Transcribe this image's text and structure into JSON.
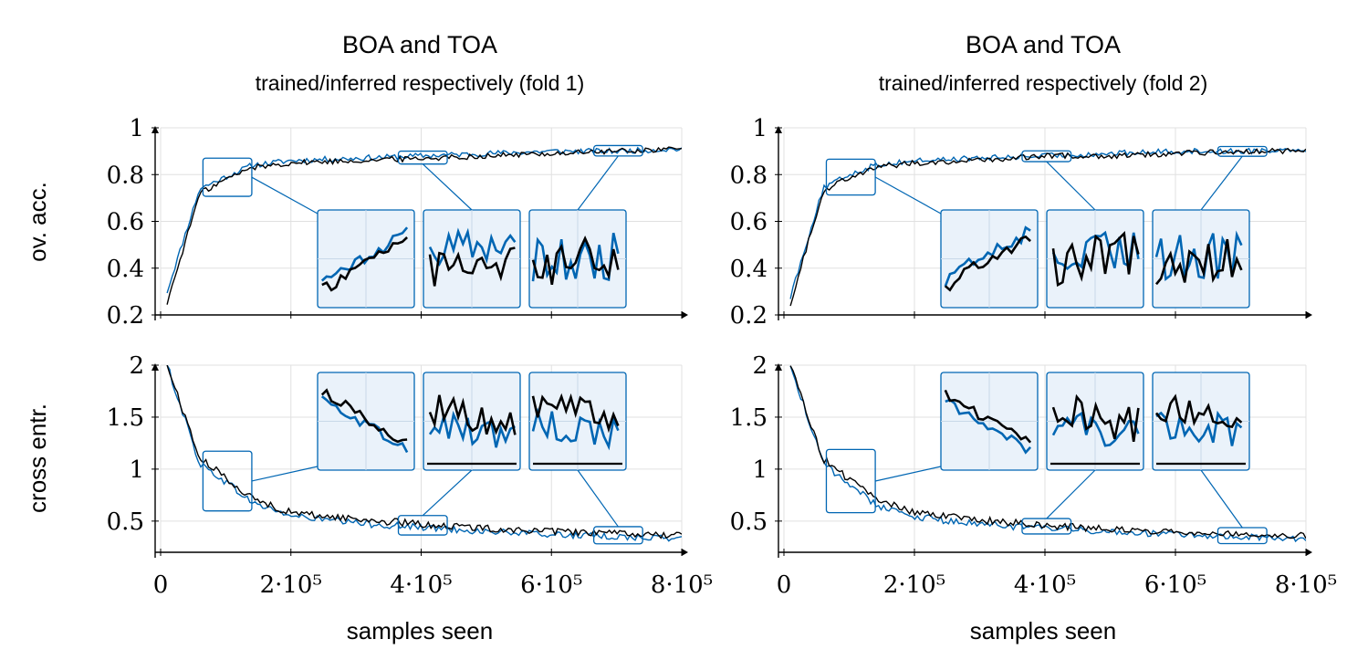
{
  "figure": {
    "columns": [
      {
        "title": "BOA and TOA",
        "subtitle": "trained/inferred respectively (fold 1)"
      },
      {
        "title": "BOA and TOA",
        "subtitle": "trained/inferred respectively (fold 2)"
      }
    ],
    "row_labels": [
      "ov. acc.",
      "cross entr."
    ],
    "xlabel": "samples seen",
    "x_tick_labels": [
      "0",
      "2·10⁵",
      "4·10⁵",
      "6·10⁵",
      "8·10⁵"
    ],
    "colors": {
      "blue": "#0066b3",
      "black": "#000000",
      "inset_fill": "#eaf2fa",
      "grid": "#e0e0e0"
    }
  },
  "chart_data": [
    {
      "type": "line",
      "panel": "fold 1 accuracy",
      "ylabel": "ov. acc.",
      "xlim": [
        0,
        800000
      ],
      "ylim": [
        0.2,
        1.0
      ],
      "y_tick_values": [
        0.2,
        0.4,
        0.6,
        0.8,
        1.0
      ],
      "y_tick_labels": [
        "0.2",
        "0.4",
        "0.6",
        "0.8",
        "1"
      ],
      "grid": true,
      "x": [
        10000,
        60000,
        100000,
        140000,
        200000,
        300000,
        400000,
        500000,
        600000,
        700000,
        800000
      ],
      "series": [
        {
          "color": "#0066b3",
          "values": [
            0.3,
            0.74,
            0.79,
            0.84,
            0.86,
            0.87,
            0.88,
            0.89,
            0.9,
            0.9,
            0.91
          ]
        },
        {
          "color": "#000000",
          "values": [
            0.25,
            0.72,
            0.78,
            0.83,
            0.85,
            0.86,
            0.87,
            0.88,
            0.89,
            0.9,
            0.91
          ]
        }
      ],
      "zoom_boxes_x": [
        [
          65000,
          140000
        ],
        [
          365000,
          440000
        ],
        [
          665000,
          740000
        ]
      ]
    },
    {
      "type": "line",
      "panel": "fold 1 cross entropy",
      "ylabel": "cross entr.",
      "xlim": [
        0,
        800000
      ],
      "ylim": [
        0.2,
        2.0
      ],
      "y_tick_values": [
        0.5,
        1.0,
        1.5,
        2.0
      ],
      "y_tick_labels": [
        "0.5",
        "1",
        "1.5",
        "2"
      ],
      "grid": true,
      "x": [
        10000,
        60000,
        100000,
        140000,
        200000,
        300000,
        400000,
        500000,
        600000,
        700000,
        800000
      ],
      "series": [
        {
          "color": "#0066b3",
          "values": [
            2.0,
            1.05,
            0.88,
            0.68,
            0.55,
            0.48,
            0.44,
            0.4,
            0.37,
            0.35,
            0.33
          ]
        },
        {
          "color": "#000000",
          "values": [
            2.0,
            1.1,
            0.92,
            0.72,
            0.58,
            0.52,
            0.47,
            0.43,
            0.4,
            0.38,
            0.36
          ]
        }
      ],
      "zoom_boxes_x": [
        [
          65000,
          140000
        ],
        [
          365000,
          440000
        ],
        [
          665000,
          740000
        ]
      ]
    },
    {
      "type": "line",
      "panel": "fold 2 accuracy",
      "ylabel": "",
      "xlim": [
        0,
        800000
      ],
      "ylim": [
        0.2,
        1.0
      ],
      "y_tick_values": [
        0.2,
        0.4,
        0.6,
        0.8,
        1.0
      ],
      "y_tick_labels": [
        "0.2",
        "0.4",
        "0.6",
        "0.8",
        "1"
      ],
      "grid": true,
      "x": [
        10000,
        60000,
        100000,
        140000,
        200000,
        300000,
        400000,
        500000,
        600000,
        700000,
        800000
      ],
      "series": [
        {
          "color": "#0066b3",
          "values": [
            0.28,
            0.74,
            0.8,
            0.84,
            0.86,
            0.87,
            0.88,
            0.89,
            0.9,
            0.9,
            0.91
          ]
        },
        {
          "color": "#000000",
          "values": [
            0.25,
            0.73,
            0.79,
            0.83,
            0.85,
            0.86,
            0.88,
            0.88,
            0.89,
            0.9,
            0.9
          ]
        }
      ],
      "zoom_boxes_x": [
        [
          65000,
          140000
        ],
        [
          365000,
          440000
        ],
        [
          665000,
          740000
        ]
      ]
    },
    {
      "type": "line",
      "panel": "fold 2 cross entropy",
      "ylabel": "",
      "xlim": [
        0,
        800000
      ],
      "ylim": [
        0.2,
        2.0
      ],
      "y_tick_values": [
        0.5,
        1.0,
        1.5,
        2.0
      ],
      "y_tick_labels": [
        "0.5",
        "1",
        "1.5",
        "2"
      ],
      "grid": true,
      "x": [
        10000,
        60000,
        100000,
        140000,
        200000,
        300000,
        400000,
        500000,
        600000,
        700000,
        800000
      ],
      "series": [
        {
          "color": "#0066b3",
          "values": [
            2.0,
            1.05,
            0.86,
            0.66,
            0.54,
            0.47,
            0.43,
            0.4,
            0.37,
            0.35,
            0.33
          ]
        },
        {
          "color": "#000000",
          "values": [
            2.0,
            1.1,
            0.9,
            0.72,
            0.58,
            0.51,
            0.46,
            0.42,
            0.4,
            0.38,
            0.36
          ]
        }
      ],
      "zoom_boxes_x": [
        [
          65000,
          140000
        ],
        [
          365000,
          440000
        ],
        [
          665000,
          740000
        ]
      ]
    }
  ]
}
